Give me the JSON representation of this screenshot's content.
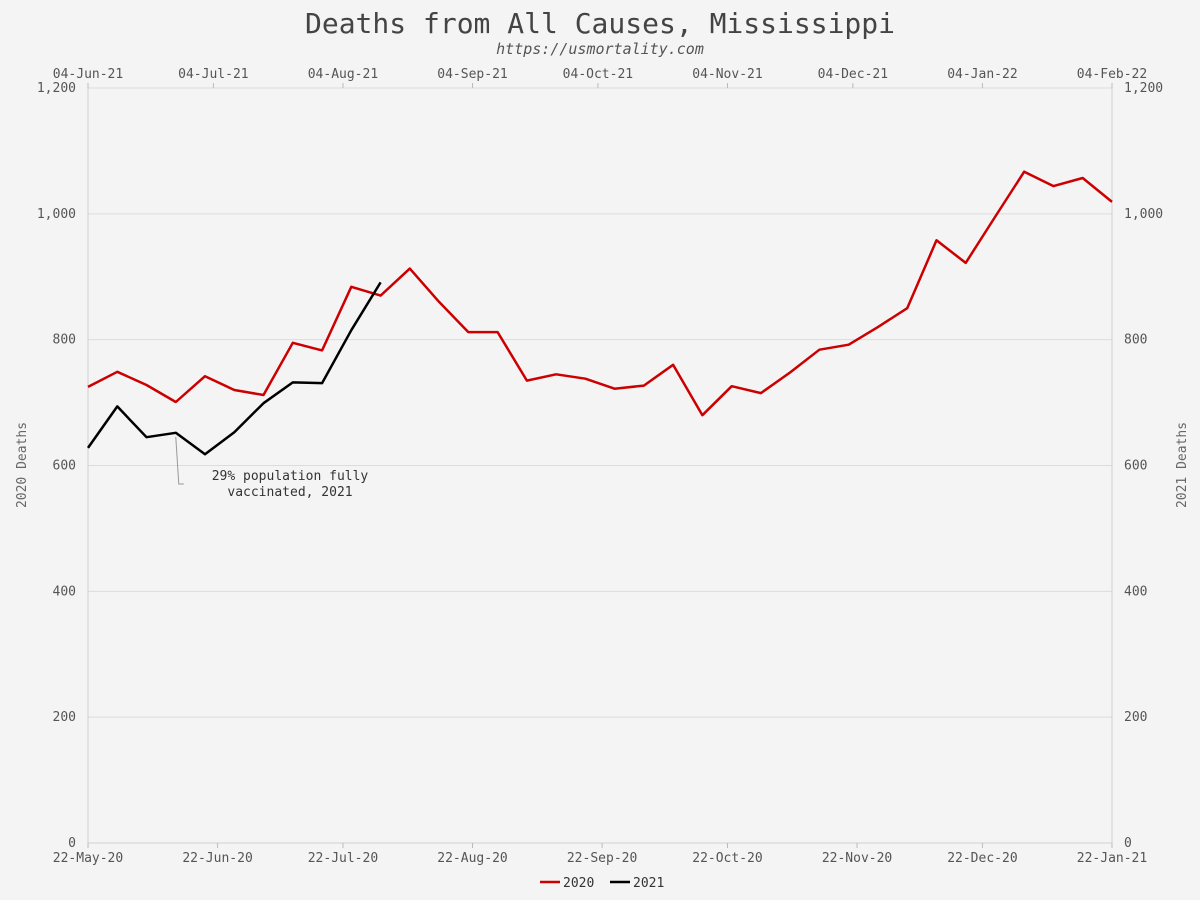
{
  "chart_data": {
    "type": "line",
    "title": "Deaths from All Causes, Mississippi",
    "subtitle": "https://usmortality.com",
    "ylabel_left": "2020 Deaths",
    "ylabel_right": "2021 Deaths",
    "ylim": [
      0,
      1200
    ],
    "y_ticks": [
      "0",
      "200",
      "400",
      "600",
      "800",
      "1,000",
      "1,200"
    ],
    "x_bottom_ticks": [
      "22-May-20",
      "22-Jun-20",
      "22-Jul-20",
      "22-Aug-20",
      "22-Sep-20",
      "22-Oct-20",
      "22-Nov-20",
      "22-Dec-20",
      "22-Jan-21"
    ],
    "x_top_ticks": [
      "04-Jun-21",
      "04-Jul-21",
      "04-Aug-21",
      "04-Sep-21",
      "04-Oct-21",
      "04-Nov-21",
      "04-Dec-21",
      "04-Jan-22",
      "04-Feb-22"
    ],
    "grid": true,
    "legend_position": "bottom",
    "series": [
      {
        "name": "2020",
        "color": "#cc0000",
        "x": [
          "22-May-20",
          "29-May-20",
          "05-Jun-20",
          "12-Jun-20",
          "19-Jun-20",
          "26-Jun-20",
          "03-Jul-20",
          "10-Jul-20",
          "17-Jul-20",
          "24-Jul-20",
          "31-Jul-20",
          "07-Aug-20",
          "14-Aug-20",
          "21-Aug-20",
          "28-Aug-20",
          "04-Sep-20",
          "11-Sep-20",
          "18-Sep-20",
          "25-Sep-20",
          "02-Oct-20",
          "09-Oct-20",
          "16-Oct-20",
          "23-Oct-20",
          "30-Oct-20",
          "06-Nov-20",
          "13-Nov-20",
          "20-Nov-20",
          "27-Nov-20",
          "04-Dec-20",
          "11-Dec-20",
          "18-Dec-20",
          "25-Dec-20",
          "01-Jan-21",
          "08-Jan-21",
          "15-Jan-21",
          "22-Jan-21"
        ],
        "values": [
          725,
          749,
          728,
          701,
          742,
          720,
          712,
          795,
          783,
          884,
          870,
          913,
          860,
          812,
          812,
          735,
          745,
          738,
          722,
          727,
          760,
          680,
          726,
          715,
          748,
          784,
          792,
          820,
          850,
          958,
          922,
          995,
          1067,
          1044,
          1057,
          1019
        ]
      },
      {
        "name": "2021",
        "color": "#000000",
        "x": [
          "04-Jun-21",
          "11-Jun-21",
          "18-Jun-21",
          "25-Jun-21",
          "02-Jul-21",
          "09-Jul-21",
          "16-Jul-21",
          "23-Jul-21",
          "30-Jul-21",
          "06-Aug-21",
          "13-Aug-21"
        ],
        "values": [
          628,
          694,
          645,
          652,
          618,
          653,
          699,
          732,
          731,
          815,
          891
        ]
      }
    ],
    "annotations": [
      {
        "lines": [
          "29% population fully",
          "vaccinated, 2021"
        ],
        "target_series": "2021",
        "target_index": 3
      }
    ]
  }
}
